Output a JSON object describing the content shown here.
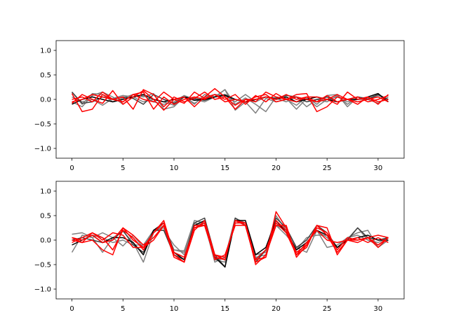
{
  "chart_data": [
    {
      "type": "line",
      "title": "",
      "xlabel": "",
      "ylabel": "",
      "xlim": [
        -1.55,
        32.55
      ],
      "ylim": [
        -1.2,
        1.2
      ],
      "xticks": [
        0,
        5,
        10,
        15,
        20,
        25,
        30
      ],
      "yticks": [
        -1.0,
        -0.5,
        0.0,
        0.5,
        1.0
      ],
      "xtick_labels": [
        "0",
        "5",
        "10",
        "15",
        "20",
        "25",
        "30"
      ],
      "ytick_labels": [
        "−1.0",
        "−0.5",
        "0.0",
        "0.5",
        "1.0"
      ],
      "grid": false,
      "x": [
        0,
        1,
        2,
        3,
        4,
        5,
        6,
        7,
        8,
        9,
        10,
        11,
        12,
        13,
        14,
        15,
        16,
        17,
        18,
        19,
        20,
        21,
        22,
        23,
        24,
        25,
        26,
        27,
        28,
        29,
        30,
        31
      ],
      "series": [
        {
          "color": "#808080",
          "values": [
            0.15,
            -0.1,
            0.12,
            0.1,
            -0.05,
            0.03,
            0.1,
            0.05,
            0.12,
            -0.2,
            -0.15,
            0.05,
            -0.1,
            0.1,
            0.05,
            0.2,
            -0.22,
            -0.05,
            -0.28,
            0.02,
            -0.05,
            0.0,
            -0.12,
            0.05,
            -0.1,
            0.08,
            0.1,
            -0.15,
            0.05,
            0.02,
            0.1,
            -0.05
          ]
        },
        {
          "color": "#808080",
          "values": [
            -0.05,
            -0.15,
            0.08,
            0.15,
            0.05,
            -0.1,
            0.05,
            0.08,
            -0.05,
            -0.1,
            -0.05,
            0.08,
            0.0,
            -0.05,
            0.05,
            0.2,
            -0.1,
            0.03,
            -0.1,
            -0.25,
            0.05,
            0.02,
            -0.2,
            0.02,
            -0.15,
            0.0,
            0.05,
            -0.05,
            0.0,
            0.0,
            0.08,
            0.0
          ]
        },
        {
          "color": "#808080",
          "values": [
            0.05,
            -0.05,
            0.0,
            -0.12,
            0.02,
            0.08,
            0.05,
            -0.05,
            0.0,
            -0.05,
            -0.12,
            0.05,
            -0.08,
            0.05,
            0.1,
            0.08,
            -0.05,
            0.1,
            -0.05,
            0.05,
            0.03,
            -0.05,
            0.05,
            -0.15,
            0.0,
            -0.05,
            0.08,
            -0.1,
            0.05,
            0.0,
            -0.08,
            0.05
          ]
        },
        {
          "color": "#404040",
          "values": [
            0.15,
            -0.08,
            -0.05,
            0.05,
            0.0,
            0.05,
            0.02,
            -0.1,
            0.1,
            0.0,
            -0.08,
            0.05,
            0.02,
            -0.02,
            0.05,
            0.1,
            0.0,
            -0.05,
            0.0,
            0.05,
            0.02,
            0.08,
            0.05,
            -0.05,
            0.0,
            0.05,
            -0.05,
            0.0,
            0.05,
            0.0,
            0.1,
            0.0
          ]
        },
        {
          "color": "#000000",
          "values": [
            -0.1,
            0.0,
            0.05,
            0.0,
            -0.05,
            0.0,
            0.05,
            0.1,
            0.0,
            -0.05,
            0.0,
            0.05,
            -0.02,
            0.0,
            0.05,
            0.08,
            0.0,
            -0.05,
            0.0,
            0.05,
            0.0,
            0.05,
            -0.05,
            0.0,
            0.05,
            0.0,
            -0.05,
            0.0,
            0.0,
            0.05,
            0.12,
            -0.05
          ]
        },
        {
          "color": "#ff0000",
          "values": [
            -0.08,
            0.1,
            0.0,
            -0.08,
            0.18,
            -0.1,
            0.05,
            0.18,
            0.0,
            -0.22,
            0.0,
            -0.08,
            0.15,
            0.02,
            0.1,
            0.0,
            0.1,
            -0.1,
            0.08,
            -0.05,
            0.12,
            0.0,
            0.1,
            0.12,
            -0.25,
            -0.15,
            0.05,
            0.0,
            -0.1,
            0.05,
            -0.1,
            0.1
          ]
        },
        {
          "color": "#ff0000",
          "values": [
            0.12,
            -0.25,
            -0.2,
            0.1,
            0.0,
            0.05,
            -0.2,
            0.2,
            0.1,
            -0.15,
            0.05,
            -0.05,
            0.02,
            0.15,
            0.0,
            0.05,
            -0.12,
            0.0,
            -0.05,
            0.15,
            0.05,
            0.0,
            0.05,
            0.0,
            -0.05,
            0.0,
            0.1,
            0.0,
            0.05,
            -0.05,
            0.0,
            0.08
          ]
        },
        {
          "color": "#ff0000",
          "values": [
            0.0,
            0.05,
            -0.05,
            0.15,
            0.0,
            -0.05,
            0.1,
            0.0,
            -0.05,
            0.15,
            0.0,
            0.05,
            -0.15,
            0.05,
            0.22,
            0.05,
            -0.2,
            0.0,
            0.0,
            0.05,
            0.0,
            0.1,
            0.0,
            0.05,
            -0.05,
            0.08,
            -0.05,
            0.0,
            -0.05,
            0.0,
            0.05,
            -0.05
          ]
        },
        {
          "color": "#ff0000",
          "values": [
            -0.05,
            0.0,
            0.1,
            0.05,
            0.0,
            -0.05,
            0.1,
            0.15,
            -0.2,
            0.05,
            -0.1,
            0.0,
            0.05,
            0.0,
            0.1,
            -0.05,
            0.0,
            -0.05,
            0.05,
            0.1,
            -0.05,
            0.0,
            -0.05,
            0.05,
            0.05,
            0.0,
            -0.1,
            0.15,
            0.0,
            0.05,
            -0.05,
            0.0
          ]
        }
      ]
    },
    {
      "type": "line",
      "title": "",
      "xlabel": "",
      "ylabel": "",
      "xlim": [
        -1.55,
        32.55
      ],
      "ylim": [
        -1.2,
        1.2
      ],
      "xticks": [
        0,
        5,
        10,
        15,
        20,
        25,
        30
      ],
      "yticks": [
        -1.0,
        -0.5,
        0.0,
        0.5,
        1.0
      ],
      "xtick_labels": [
        "0",
        "5",
        "10",
        "15",
        "20",
        "25",
        "30"
      ],
      "ytick_labels": [
        "−1.0",
        "−0.5",
        "0.0",
        "0.5",
        "1.0"
      ],
      "grid": false,
      "x": [
        0,
        1,
        2,
        3,
        4,
        5,
        6,
        7,
        8,
        9,
        10,
        11,
        12,
        13,
        14,
        15,
        16,
        17,
        18,
        19,
        20,
        21,
        22,
        23,
        24,
        25,
        26,
        27,
        28,
        29,
        30,
        31
      ],
      "series": [
        {
          "color": "#808080",
          "values": [
            0.12,
            0.15,
            0.05,
            -0.25,
            0.05,
            0.18,
            -0.05,
            -0.45,
            0.15,
            0.3,
            -0.2,
            -0.22,
            0.4,
            0.35,
            -0.45,
            -0.35,
            0.45,
            0.35,
            -0.38,
            -0.2,
            0.5,
            0.2,
            -0.3,
            -0.05,
            0.2,
            0.05,
            -0.15,
            0.02,
            0.25,
            0.0,
            -0.1,
            0.05
          ]
        },
        {
          "color": "#808080",
          "values": [
            -0.25,
            0.1,
            0.05,
            0.15,
            0.05,
            -0.12,
            0.1,
            -0.15,
            0.2,
            0.25,
            -0.2,
            -0.25,
            0.35,
            0.3,
            -0.4,
            -0.45,
            0.4,
            0.3,
            -0.3,
            -0.25,
            0.3,
            0.1,
            -0.15,
            -0.25,
            0.2,
            -0.15,
            -0.1,
            0.05,
            0.15,
            0.2,
            -0.15,
            0.0
          ]
        },
        {
          "color": "#808080",
          "values": [
            0.05,
            0.0,
            0.1,
            0.05,
            -0.05,
            0.0,
            -0.1,
            -0.1,
            0.2,
            0.2,
            -0.1,
            -0.3,
            0.3,
            0.35,
            -0.35,
            -0.4,
            0.35,
            0.35,
            -0.35,
            -0.3,
            0.3,
            0.2,
            -0.2,
            0.05,
            0.1,
            0.1,
            -0.15,
            0.05,
            0.1,
            0.0,
            -0.05,
            0.05
          ]
        },
        {
          "color": "#404040",
          "values": [
            0.0,
            0.05,
            0.0,
            -0.05,
            0.0,
            0.2,
            -0.1,
            -0.25,
            0.2,
            0.2,
            -0.3,
            -0.4,
            0.35,
            0.45,
            -0.3,
            -0.55,
            0.45,
            0.3,
            -0.45,
            -0.2,
            0.45,
            0.25,
            -0.15,
            0.0,
            0.3,
            0.15,
            -0.15,
            0.0,
            0.25,
            0.05,
            0.0,
            0.05
          ]
        },
        {
          "color": "#000000",
          "values": [
            -0.1,
            0.0,
            0.1,
            -0.05,
            0.05,
            0.05,
            -0.05,
            -0.3,
            0.2,
            0.35,
            -0.25,
            -0.4,
            0.3,
            0.4,
            -0.35,
            -0.55,
            0.4,
            0.4,
            -0.3,
            -0.15,
            0.4,
            0.15,
            -0.2,
            -0.05,
            0.2,
            0.1,
            -0.15,
            0.0,
            0.05,
            0.1,
            0.0,
            0.0
          ]
        },
        {
          "color": "#ff0000",
          "values": [
            0.05,
            0.0,
            0.1,
            -0.05,
            0.0,
            0.25,
            0.0,
            -0.15,
            0.15,
            0.4,
            -0.3,
            -0.45,
            0.3,
            0.3,
            -0.3,
            -0.35,
            0.35,
            0.35,
            -0.5,
            -0.3,
            0.3,
            0.3,
            -0.35,
            -0.1,
            0.3,
            0.25,
            -0.3,
            0.0,
            0.0,
            0.05,
            -0.1,
            0.05
          ]
        },
        {
          "color": "#ff0000",
          "values": [
            -0.05,
            0.05,
            0.15,
            0.0,
            0.15,
            0.1,
            -0.15,
            -0.15,
            0.0,
            0.3,
            -0.25,
            -0.35,
            0.25,
            0.35,
            -0.4,
            -0.3,
            0.3,
            0.3,
            -0.4,
            -0.35,
            0.58,
            0.25,
            -0.3,
            -0.05,
            0.2,
            0.0,
            -0.05,
            0.0,
            -0.05,
            0.05,
            0.1,
            0.05
          ]
        },
        {
          "color": "#ff0000",
          "values": [
            0.0,
            -0.05,
            0.15,
            0.05,
            -0.2,
            0.2,
            0.05,
            -0.2,
            0.15,
            0.35,
            -0.3,
            -0.45,
            0.2,
            0.4,
            -0.3,
            -0.4,
            0.4,
            0.3,
            -0.45,
            -0.35,
            0.4,
            0.2,
            -0.25,
            -0.1,
            0.25,
            0.15,
            -0.2,
            0.05,
            0.0,
            0.05,
            -0.15,
            0.05
          ]
        },
        {
          "color": "#ff0000",
          "values": [
            0.05,
            -0.05,
            0.0,
            -0.2,
            -0.3,
            0.25,
            0.1,
            -0.1,
            0.05,
            0.3,
            -0.35,
            -0.45,
            0.25,
            0.3,
            -0.35,
            -0.4,
            0.4,
            0.35,
            -0.4,
            -0.2,
            0.35,
            0.15,
            -0.3,
            -0.15,
            0.3,
            0.1,
            -0.25,
            0.0,
            0.05,
            -0.05,
            0.05,
            -0.05
          ]
        }
      ]
    }
  ]
}
